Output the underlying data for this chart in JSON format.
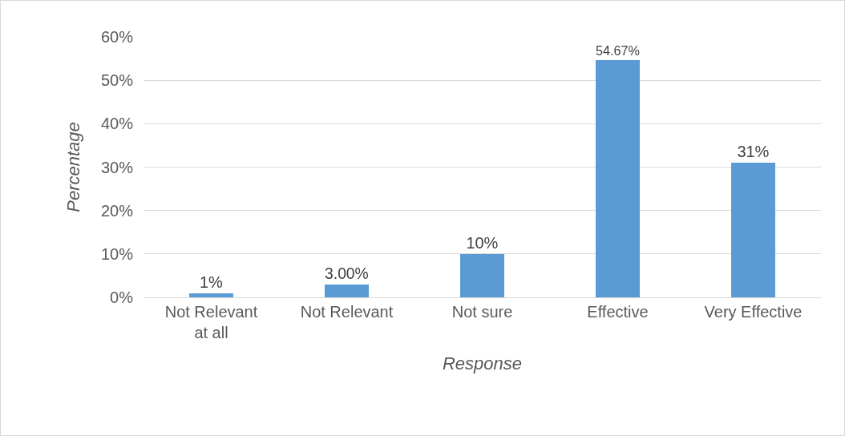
{
  "chart_data": {
    "type": "bar",
    "categories": [
      "Not Relevant at all",
      "Not Relevant",
      "Not sure",
      "Effective",
      "Very Effective"
    ],
    "values": [
      1,
      3.0,
      10,
      54.67,
      31
    ],
    "value_labels": [
      "1%",
      "3.00%",
      "10%",
      "54.67%",
      "31%"
    ],
    "color": "#5b9bd5",
    "xlabel": "Response",
    "ylabel": "Percentage",
    "ylim": [
      0,
      60
    ],
    "yticks": [
      {
        "value": 0,
        "label": "0%"
      },
      {
        "value": 10,
        "label": "10%"
      },
      {
        "value": 20,
        "label": "20%"
      },
      {
        "value": 30,
        "label": "30%"
      },
      {
        "value": 40,
        "label": "40%"
      },
      {
        "value": 50,
        "label": "50%"
      },
      {
        "value": 60,
        "label": "60%"
      }
    ],
    "grid": "y",
    "legend": false
  }
}
